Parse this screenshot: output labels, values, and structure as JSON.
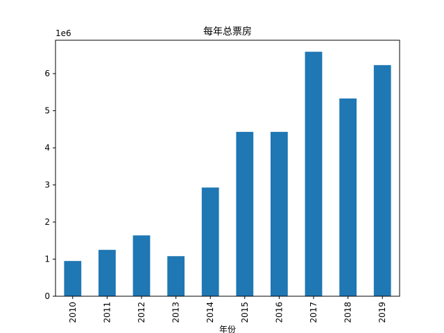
{
  "chart_data": {
    "type": "bar",
    "title": "每年总票房",
    "xlabel": "年份",
    "ylabel": "",
    "offset_label": "1e6",
    "categories": [
      "2010",
      "2011",
      "2012",
      "2013",
      "2014",
      "2015",
      "2016",
      "2017",
      "2018",
      "2019"
    ],
    "values": [
      950000,
      1250000,
      1640000,
      1080000,
      2930000,
      4430000,
      4430000,
      6590000,
      5330000,
      6230000
    ],
    "yticks": [
      0,
      1,
      2,
      3,
      4,
      5,
      6
    ],
    "ylim": [
      0,
      6900000
    ],
    "bar_color": "#1f77b4",
    "grid": false,
    "legend": "none"
  }
}
